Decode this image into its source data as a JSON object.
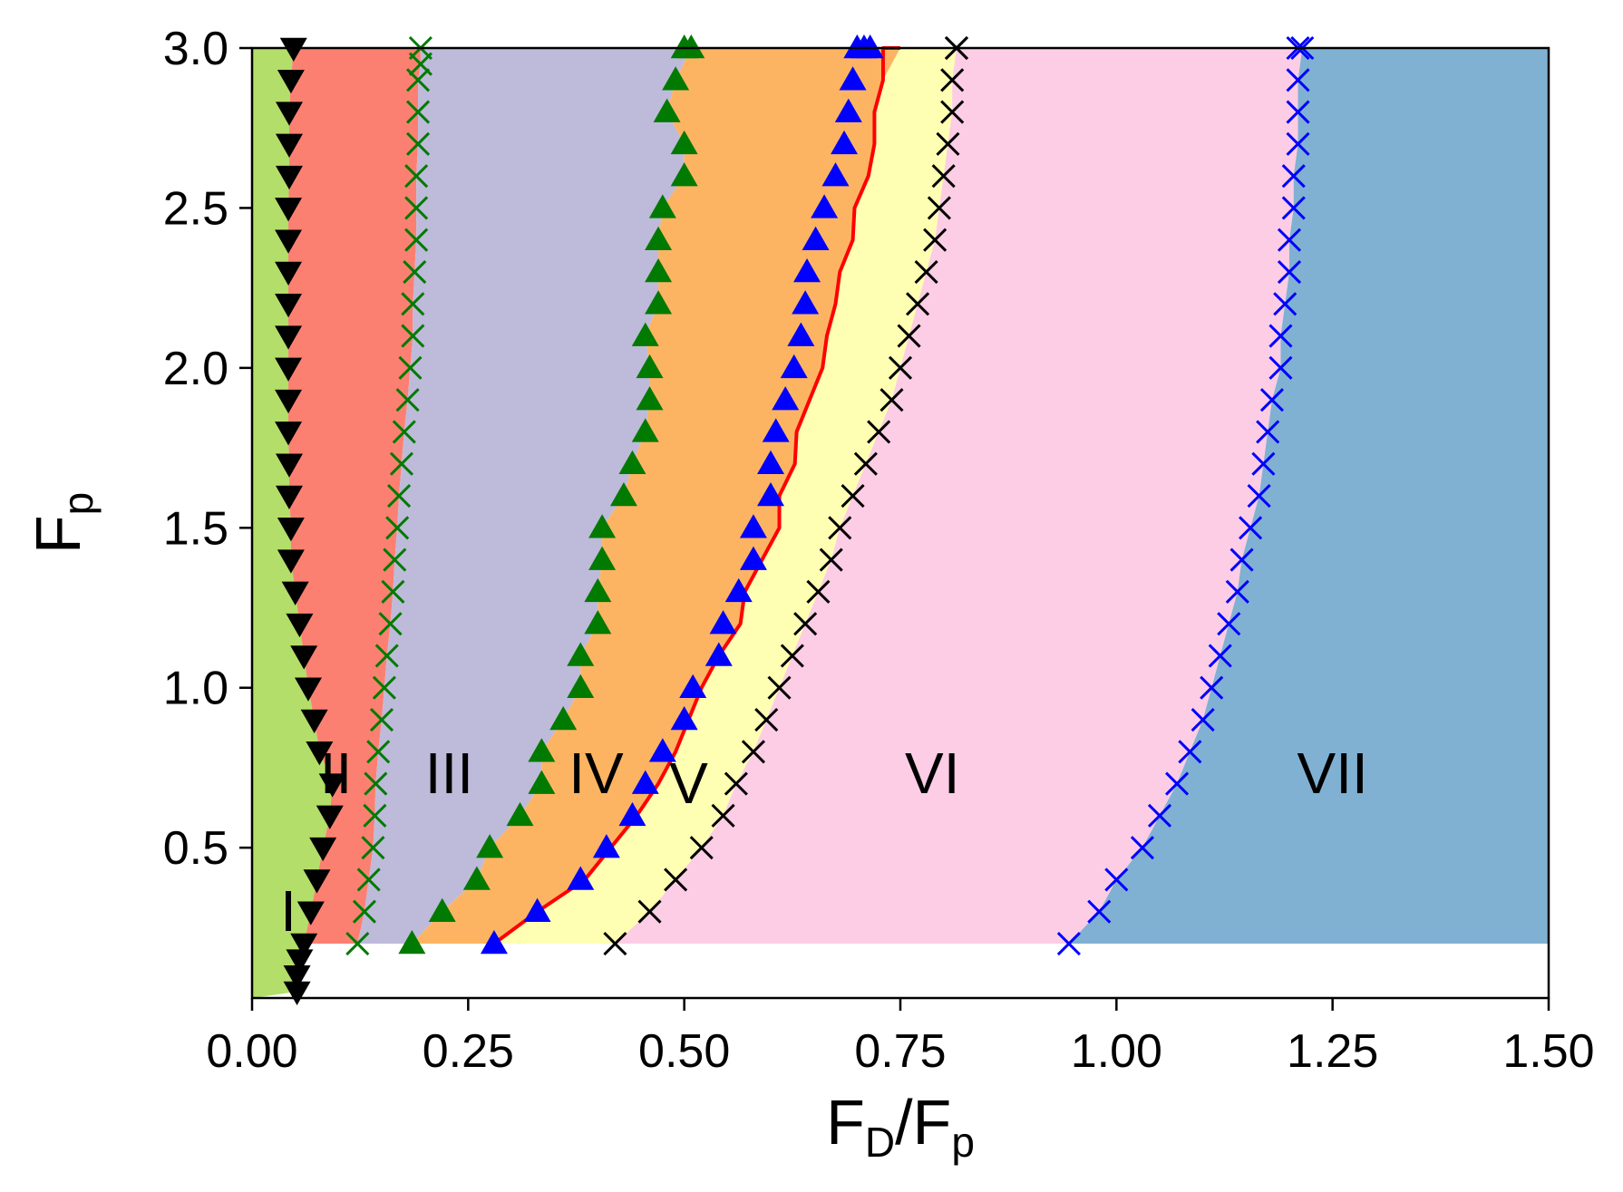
{
  "chart_data": {
    "type": "scatter",
    "title": "",
    "xlabel": {
      "main": "F",
      "sub1": "D",
      "slash": "/F",
      "sub2": "p"
    },
    "ylabel": {
      "main": "F",
      "sub": "p"
    },
    "xlim": [
      0,
      1.5
    ],
    "ylim": [
      0.03,
      3.0
    ],
    "fill_ymin": 0.2,
    "xticks": [
      0,
      0.25,
      0.5,
      0.75,
      1.0,
      1.25,
      1.5
    ],
    "xtick_labels": [
      "0.00",
      "0.25",
      "0.50",
      "0.75",
      "1.00",
      "1.25",
      "1.50"
    ],
    "yticks": [
      0.5,
      1.0,
      1.5,
      2.0,
      2.5,
      3.0
    ],
    "ytick_labels": [
      "0.5",
      "1.0",
      "1.5",
      "2.0",
      "2.5",
      "3.0"
    ],
    "regions": [
      {
        "name": "I",
        "color": "#b3de69",
        "label_x": 0.042,
        "label_y": 0.24
      },
      {
        "name": "II",
        "color": "#fb8072",
        "label_x": 0.097,
        "label_y": 0.67
      },
      {
        "name": "III",
        "color": "#bebada",
        "label_x": 0.228,
        "label_y": 0.67
      },
      {
        "name": "IV",
        "color": "#fdb462",
        "label_x": 0.398,
        "label_y": 0.67
      },
      {
        "name": "V",
        "color": "#ffffb3",
        "label_x": 0.505,
        "label_y": 0.64
      },
      {
        "name": "VI",
        "color": "#fccde5",
        "label_x": 0.787,
        "label_y": 0.67
      },
      {
        "name": "VII",
        "color": "#80b1d3",
        "label_x": 1.25,
        "label_y": 0.67
      }
    ],
    "series": [
      {
        "name": "I-II boundary",
        "marker": "triangle-down",
        "color": "#000000",
        "x": [
          0.052,
          0.052,
          0.055,
          0.06,
          0.068,
          0.075,
          0.082,
          0.09,
          0.093,
          0.078,
          0.072,
          0.065,
          0.06,
          0.055,
          0.05,
          0.045,
          0.045,
          0.043,
          0.043,
          0.042,
          0.042,
          0.042,
          0.042,
          0.042,
          0.042,
          0.042,
          0.042,
          0.043,
          0.043,
          0.043,
          0.045,
          0.048
        ],
        "y": [
          0.05,
          0.1,
          0.15,
          0.2,
          0.3,
          0.4,
          0.5,
          0.6,
          0.7,
          0.8,
          0.9,
          1.0,
          1.1,
          1.2,
          1.3,
          1.4,
          1.5,
          1.6,
          1.7,
          1.8,
          1.9,
          2.0,
          2.1,
          2.2,
          2.3,
          2.4,
          2.5,
          2.6,
          2.7,
          2.8,
          2.9,
          3.0
        ]
      },
      {
        "name": "II-III boundary",
        "marker": "x",
        "color": "#007a00",
        "x": [
          0.122,
          0.13,
          0.135,
          0.14,
          0.142,
          0.143,
          0.146,
          0.15,
          0.153,
          0.156,
          0.16,
          0.163,
          0.165,
          0.168,
          0.17,
          0.173,
          0.176,
          0.18,
          0.183,
          0.186,
          0.186,
          0.188,
          0.19,
          0.19,
          0.19,
          0.192,
          0.192,
          0.192,
          0.195,
          0.195
        ],
        "y": [
          0.2,
          0.3,
          0.4,
          0.5,
          0.6,
          0.7,
          0.8,
          0.9,
          1.0,
          1.1,
          1.2,
          1.3,
          1.4,
          1.5,
          1.6,
          1.7,
          1.8,
          1.9,
          2.0,
          2.1,
          2.2,
          2.3,
          2.4,
          2.5,
          2.6,
          2.7,
          2.8,
          2.9,
          3.0,
          2.95
        ]
      },
      {
        "name": "III-IV boundary",
        "marker": "triangle-up",
        "color": "#007a00",
        "x": [
          0.185,
          0.22,
          0.26,
          0.275,
          0.31,
          0.335,
          0.335,
          0.36,
          0.38,
          0.38,
          0.4,
          0.4,
          0.405,
          0.405,
          0.43,
          0.44,
          0.455,
          0.46,
          0.46,
          0.455,
          0.47,
          0.47,
          0.47,
          0.475,
          0.5,
          0.5,
          0.48,
          0.49,
          0.5,
          0.508
        ],
        "y": [
          0.2,
          0.3,
          0.4,
          0.5,
          0.6,
          0.7,
          0.8,
          0.9,
          1.0,
          1.1,
          1.2,
          1.3,
          1.4,
          1.5,
          1.6,
          1.7,
          1.8,
          1.9,
          2.0,
          2.1,
          2.2,
          2.3,
          2.4,
          2.5,
          2.6,
          2.7,
          2.8,
          2.9,
          3.0,
          3.0
        ]
      },
      {
        "name": "IV-V boundary (triangles)",
        "marker": "triangle-up",
        "color": "#0000ff",
        "x": [
          0.28,
          0.33,
          0.38,
          0.41,
          0.44,
          0.455,
          0.475,
          0.5,
          0.51,
          0.54,
          0.545,
          0.563,
          0.58,
          0.58,
          0.6,
          0.6,
          0.606,
          0.617,
          0.627,
          0.635,
          0.64,
          0.642,
          0.652,
          0.662,
          0.675,
          0.685,
          0.69,
          0.695,
          0.7,
          0.708,
          0.715
        ],
        "y": [
          0.2,
          0.3,
          0.4,
          0.5,
          0.6,
          0.7,
          0.8,
          0.9,
          1.0,
          1.1,
          1.2,
          1.3,
          1.4,
          1.5,
          1.6,
          1.7,
          1.8,
          1.9,
          2.0,
          2.1,
          2.2,
          2.3,
          2.4,
          2.5,
          2.6,
          2.7,
          2.8,
          2.9,
          3.0,
          3.0,
          3.0
        ]
      },
      {
        "name": "IV-V boundary (line)",
        "marker": "line",
        "color": "#ff0000",
        "x": [
          0.28,
          0.33,
          0.385,
          0.415,
          0.445,
          0.47,
          0.49,
          0.505,
          0.52,
          0.54,
          0.565,
          0.57,
          0.59,
          0.61,
          0.61,
          0.628,
          0.63,
          0.645,
          0.66,
          0.665,
          0.675,
          0.68,
          0.695,
          0.697,
          0.713,
          0.72,
          0.72,
          0.73,
          0.73,
          0.745,
          0.75
        ],
        "y": [
          0.2,
          0.3,
          0.4,
          0.5,
          0.6,
          0.7,
          0.8,
          0.9,
          1.0,
          1.1,
          1.2,
          1.3,
          1.4,
          1.5,
          1.6,
          1.7,
          1.8,
          1.9,
          2.0,
          2.1,
          2.2,
          2.3,
          2.4,
          2.5,
          2.6,
          2.7,
          2.8,
          2.9,
          3.0,
          3.0,
          3.0
        ]
      },
      {
        "name": "V-VI boundary",
        "marker": "x",
        "color": "#000000",
        "x": [
          0.42,
          0.46,
          0.49,
          0.52,
          0.545,
          0.56,
          0.58,
          0.595,
          0.61,
          0.625,
          0.64,
          0.655,
          0.67,
          0.68,
          0.695,
          0.71,
          0.725,
          0.74,
          0.75,
          0.76,
          0.77,
          0.78,
          0.79,
          0.795,
          0.8,
          0.805,
          0.81,
          0.81,
          0.815,
          0.815
        ],
        "y": [
          0.2,
          0.3,
          0.4,
          0.5,
          0.6,
          0.7,
          0.8,
          0.9,
          1.0,
          1.1,
          1.2,
          1.3,
          1.4,
          1.5,
          1.6,
          1.7,
          1.8,
          1.9,
          2.0,
          2.1,
          2.2,
          2.3,
          2.4,
          2.5,
          2.6,
          2.7,
          2.8,
          2.9,
          3.0,
          3.0
        ]
      },
      {
        "name": "VI-VII boundary",
        "marker": "x",
        "color": "#0000ff",
        "x": [
          0.945,
          0.98,
          1.0,
          1.03,
          1.05,
          1.07,
          1.085,
          1.1,
          1.11,
          1.12,
          1.13,
          1.14,
          1.145,
          1.155,
          1.165,
          1.17,
          1.175,
          1.18,
          1.19,
          1.19,
          1.195,
          1.2,
          1.2,
          1.205,
          1.205,
          1.21,
          1.21,
          1.21,
          1.21,
          1.215
        ],
        "y": [
          0.2,
          0.3,
          0.4,
          0.5,
          0.6,
          0.7,
          0.8,
          0.9,
          1.0,
          1.1,
          1.2,
          1.3,
          1.4,
          1.5,
          1.6,
          1.7,
          1.8,
          1.9,
          2.0,
          2.1,
          2.2,
          2.3,
          2.4,
          2.5,
          2.6,
          2.7,
          2.8,
          2.9,
          3.0,
          3.0
        ]
      }
    ]
  }
}
